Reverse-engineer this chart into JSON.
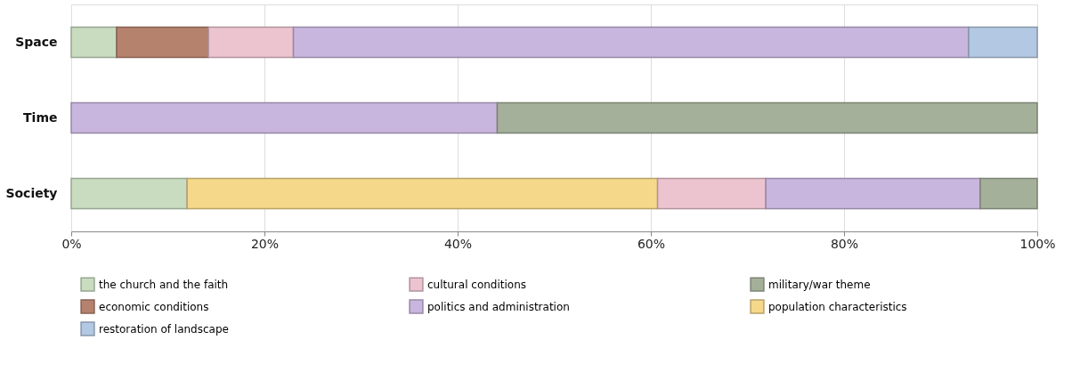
{
  "chart_data": {
    "type": "bar",
    "orientation": "horizontal",
    "stacked": true,
    "categories": [
      "Space",
      "Time",
      "Society"
    ],
    "series": [
      {
        "name": "the church and the faith",
        "color": "#c9dcc0",
        "values": [
          4.7,
          null,
          12.0
        ]
      },
      {
        "name": "economic conditions",
        "color": "#b5826e",
        "values": [
          9.5,
          null,
          null
        ]
      },
      {
        "name": "population characteristics",
        "color": "#f5d88a",
        "values": [
          null,
          null,
          48.7
        ]
      },
      {
        "name": "cultural conditions",
        "color": "#ecc4d0",
        "values": [
          8.8,
          null,
          11.2
        ]
      },
      {
        "name": "politics and administration",
        "color": "#c9b6de",
        "values": [
          69.9,
          44.1,
          22.2
        ]
      },
      {
        "name": "restoration of landscape",
        "color": "#b3c8e2",
        "values": [
          7.1,
          null,
          null
        ]
      },
      {
        "name": "military/war theme",
        "color": "#a5b09a",
        "values": [
          null,
          55.9,
          5.9
        ]
      }
    ],
    "xlim": [
      0,
      100
    ],
    "xticks": [
      {
        "value": 0,
        "label": "0%"
      },
      {
        "value": 20,
        "label": "20%"
      },
      {
        "value": 40,
        "label": "40%"
      },
      {
        "value": 60,
        "label": "60%"
      },
      {
        "value": 80,
        "label": "80%"
      },
      {
        "value": 100,
        "label": "100%"
      }
    ],
    "grid": "x",
    "legend": "bottom"
  }
}
